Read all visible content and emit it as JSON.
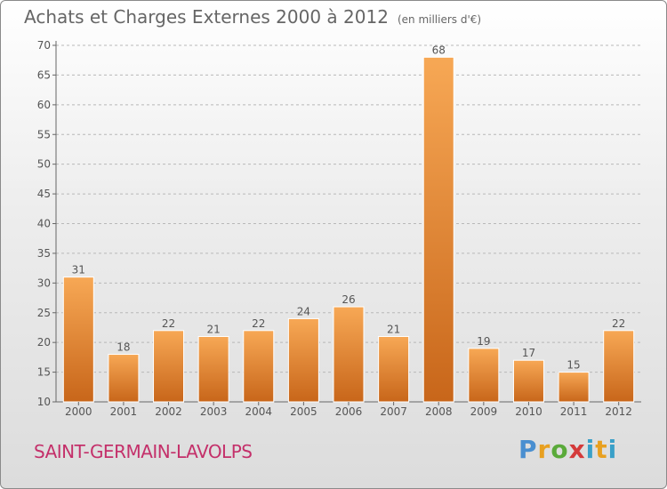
{
  "header": {
    "title": "Achats et Charges Externes 2000 à 2012",
    "unit": "(en milliers d'€)"
  },
  "footer": {
    "town": "SAINT-GERMAIN-LAVOLPS",
    "logo_parts": [
      "P",
      "r",
      "o",
      "x",
      "i",
      "t",
      "i"
    ]
  },
  "colors": {
    "bar_top": "#f7a855",
    "bar_bottom": "#c8661a",
    "town": "#c4306a"
  },
  "chart_data": {
    "type": "bar",
    "title": "Achats et Charges Externes 2000 à 2012",
    "subtitle": "(en milliers d'€)",
    "categories": [
      "2000",
      "2001",
      "2002",
      "2003",
      "2004",
      "2005",
      "2006",
      "2007",
      "2008",
      "2009",
      "2010",
      "2011",
      "2012"
    ],
    "values": [
      31,
      18,
      22,
      21,
      22,
      24,
      26,
      21,
      68,
      19,
      17,
      15,
      22
    ],
    "ylim": [
      10,
      70
    ],
    "yticks": [
      10,
      15,
      20,
      25,
      30,
      35,
      40,
      45,
      50,
      55,
      60,
      65,
      70
    ],
    "grid": "horizontal-dashed",
    "legend": "none"
  }
}
